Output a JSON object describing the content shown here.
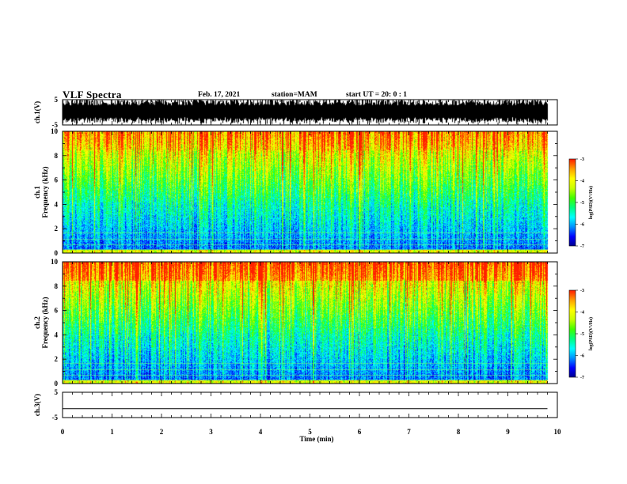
{
  "header": {
    "title": "VLF Spectra",
    "date": "Feb. 17, 2021",
    "station": "station=MAM",
    "start": "start  UT =   20: 0  : 1"
  },
  "colors": {
    "colormap": [
      "#00008b",
      "#0000ff",
      "#0090ff",
      "#00ffff",
      "#00ff80",
      "#40ff00",
      "#c8ff00",
      "#ffff00",
      "#ffa000",
      "#ff2000",
      "#ffffff"
    ]
  },
  "chart_data": [
    {
      "type": "line",
      "name": "waveform-ch1",
      "ylabel": "ch.1(V)",
      "ylim": [
        -5,
        5
      ],
      "yticks": [
        "5",
        "-5"
      ],
      "description_values": {
        "min": -5,
        "max": 5
      }
    },
    {
      "type": "heatmap",
      "name": "spectrogram-ch1",
      "ylabel_line1": "ch.1",
      "ylabel_line2": "Frequency (kHz)",
      "ylim": [
        0,
        10
      ],
      "yticks": [
        "0",
        "2",
        "4",
        "6",
        "8",
        "10"
      ],
      "colorbar": {
        "label": "log(PSD)(V²/Hz)",
        "range": [
          -7,
          -3
        ],
        "ticks": [
          "-3",
          "-4",
          "-5",
          "-6",
          "-7"
        ]
      }
    },
    {
      "type": "heatmap",
      "name": "spectrogram-ch2",
      "ylabel_line1": "ch.2",
      "ylabel_line2": "Frequency (kHz)",
      "ylim": [
        0,
        10
      ],
      "yticks": [
        "0",
        "2",
        "4",
        "6",
        "8",
        "10"
      ],
      "colorbar": {
        "label": "log(PSD)(V²/Hz)",
        "range": [
          -7,
          -3
        ],
        "ticks": [
          "-3",
          "-4",
          "-5",
          "-6",
          "-7"
        ]
      }
    },
    {
      "type": "line",
      "name": "waveform-ch3",
      "ylabel": "ch.3(V)",
      "ylim": [
        -5,
        5
      ],
      "yticks": [
        "5",
        "-5"
      ],
      "x": [
        0,
        9.8
      ],
      "y": [
        -1.5,
        -1.5
      ]
    }
  ],
  "xaxis": {
    "label": "Time  (min)",
    "range": [
      0,
      10
    ],
    "ticks": [
      "0",
      "1",
      "2",
      "3",
      "4",
      "5",
      "6",
      "7",
      "8",
      "9",
      "10"
    ],
    "data_end": 9.8
  }
}
